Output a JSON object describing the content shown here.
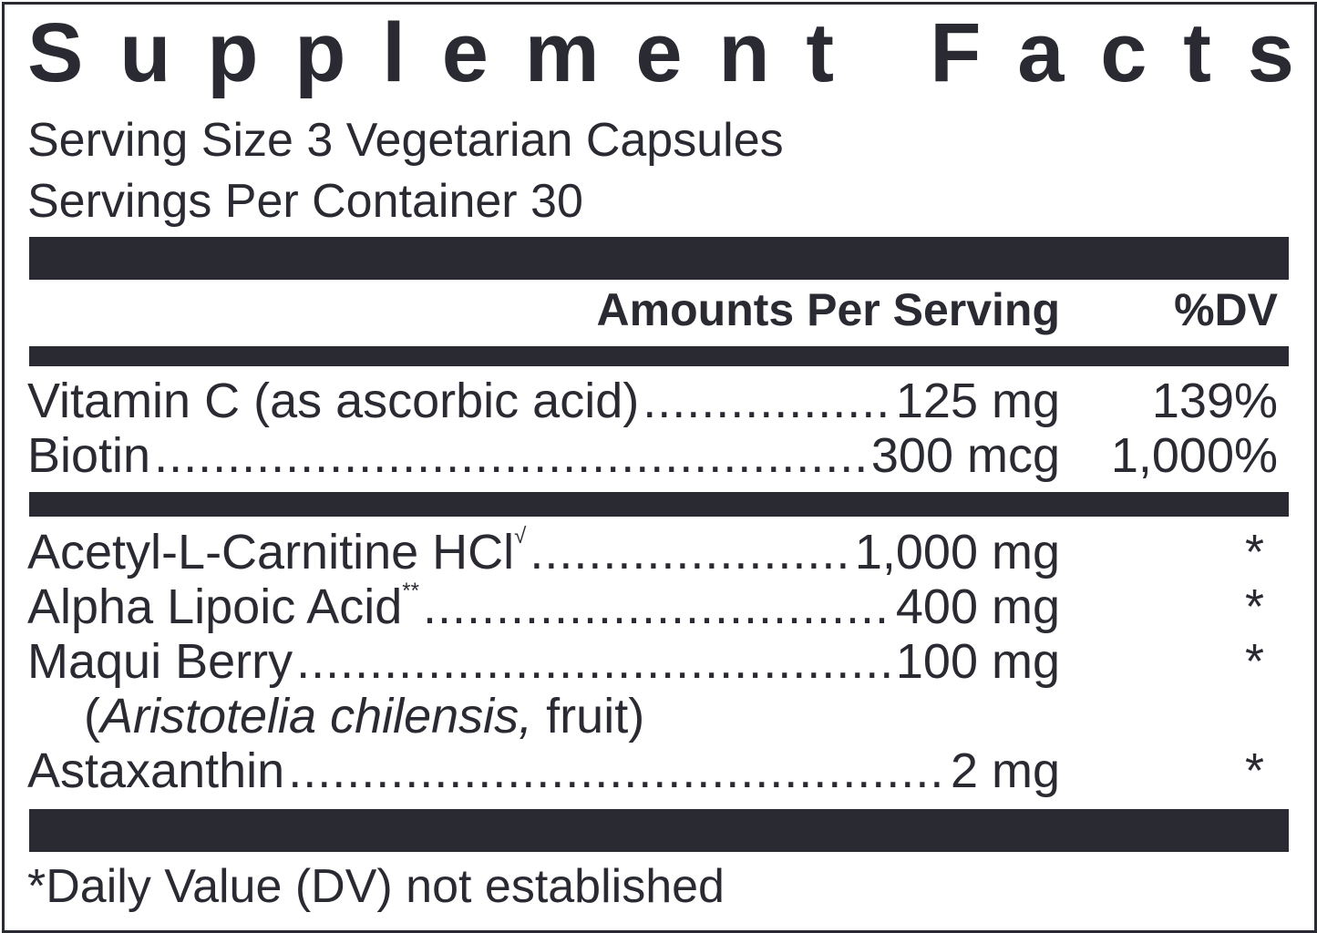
{
  "title": "Supplement Facts",
  "serving_size": "Serving Size 3 Vegetarian Capsules",
  "servings_per_container": "Servings Per Container 30",
  "header": {
    "amount": "Amounts Per Serving",
    "dv": "%DV"
  },
  "vitamins": [
    {
      "name": "Vitamin C (as ascorbic acid)",
      "amount": "125 mg",
      "dv": "139%"
    },
    {
      "name": "Biotin",
      "amount": "300 mcg",
      "dv": "1,000%"
    }
  ],
  "others": [
    {
      "name": "Acetyl-L-Carnitine HCl",
      "mark": "√",
      "amount": "1,000 mg",
      "dv": "*"
    },
    {
      "name": "Alpha Lipoic Acid",
      "mark": "**",
      "amount": "400 mg",
      "dv": "*"
    },
    {
      "name": "Maqui Berry",
      "amount": "100 mg",
      "dv": "*",
      "sub_italic": "Aristotelia chilensis,",
      "sub_rest": " fruit)",
      "sub_open": "("
    },
    {
      "name": "Astaxanthin",
      "amount": "2 mg",
      "dv": "*"
    }
  ],
  "footnote": "*Daily Value (DV) not established"
}
